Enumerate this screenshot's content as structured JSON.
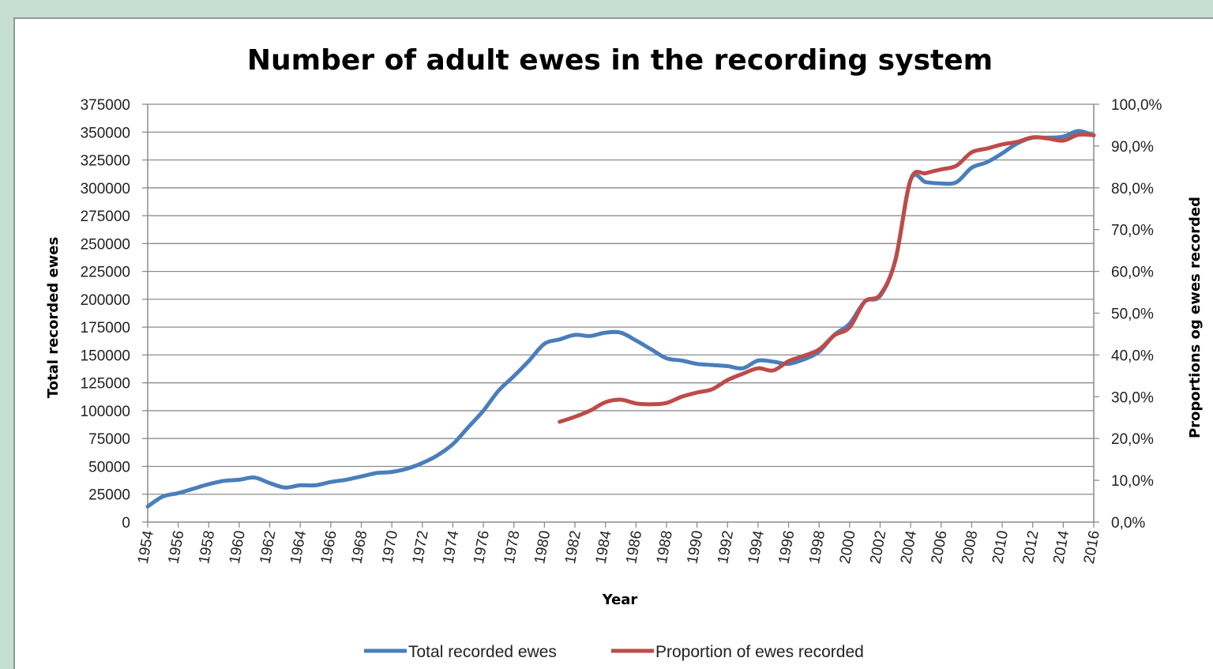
{
  "chart_data": {
    "type": "line",
    "title": "Number of adult ewes in the recording system",
    "xlabel": "Year",
    "ylabel": "Total recorded ewes",
    "y2label": "Proportions og ewes recorded",
    "xlim": [
      1954,
      2016
    ],
    "ylim": [
      0,
      375000
    ],
    "y2lim": [
      0,
      100
    ],
    "x_ticks": [
      "1954",
      "1956",
      "1958",
      "1960",
      "1962",
      "1964",
      "1966",
      "1968",
      "1970",
      "1972",
      "1974",
      "1976",
      "1978",
      "1980",
      "1982",
      "1984",
      "1986",
      "1988",
      "1990",
      "1992",
      "1994",
      "1996",
      "1998",
      "2000",
      "2002",
      "2004",
      "2006",
      "2008",
      "2010",
      "2012",
      "2014",
      "2016"
    ],
    "y_ticks": [
      "0",
      "25000",
      "50000",
      "75000",
      "100000",
      "125000",
      "150000",
      "175000",
      "200000",
      "225000",
      "250000",
      "275000",
      "300000",
      "325000",
      "350000",
      "375000"
    ],
    "y2_ticks": [
      "0,0%",
      "10,0%",
      "20,0%",
      "30,0%",
      "40,0%",
      "50,0%",
      "60,0%",
      "70,0%",
      "80,0%",
      "90,0%",
      "100,0%"
    ],
    "grid": "horizontal",
    "legend_position": "bottom",
    "series": [
      {
        "name": "Total recorded ewes",
        "color": "#4a7ebb",
        "axis": "left",
        "points": [
          [
            1954,
            14000
          ],
          [
            1955,
            23000
          ],
          [
            1956,
            26000
          ],
          [
            1957,
            30000
          ],
          [
            1958,
            34000
          ],
          [
            1959,
            37000
          ],
          [
            1960,
            38000
          ],
          [
            1961,
            40000
          ],
          [
            1962,
            35000
          ],
          [
            1963,
            31000
          ],
          [
            1964,
            33000
          ],
          [
            1965,
            33000
          ],
          [
            1966,
            36000
          ],
          [
            1967,
            38000
          ],
          [
            1968,
            41000
          ],
          [
            1969,
            44000
          ],
          [
            1970,
            45000
          ],
          [
            1971,
            48000
          ],
          [
            1972,
            53000
          ],
          [
            1973,
            60000
          ],
          [
            1974,
            70000
          ],
          [
            1975,
            85000
          ],
          [
            1976,
            100000
          ],
          [
            1977,
            118000
          ],
          [
            1978,
            131000
          ],
          [
            1979,
            145000
          ],
          [
            1980,
            160000
          ],
          [
            1981,
            164000
          ],
          [
            1982,
            168000
          ],
          [
            1983,
            167000
          ],
          [
            1984,
            170000
          ],
          [
            1985,
            170000
          ],
          [
            1986,
            163000
          ],
          [
            1987,
            155000
          ],
          [
            1988,
            147000
          ],
          [
            1989,
            145000
          ],
          [
            1990,
            142000
          ],
          [
            1991,
            141000
          ],
          [
            1992,
            140000
          ],
          [
            1993,
            138000
          ],
          [
            1994,
            145000
          ],
          [
            1995,
            144000
          ],
          [
            1996,
            142000
          ],
          [
            1997,
            146000
          ],
          [
            1998,
            153000
          ],
          [
            1999,
            168000
          ],
          [
            2000,
            178000
          ],
          [
            2001,
            198000
          ],
          [
            2002,
            203000
          ],
          [
            2003,
            235000
          ],
          [
            2004,
            307000
          ],
          [
            2005,
            305000
          ],
          [
            2006,
            304000
          ],
          [
            2007,
            305000
          ],
          [
            2008,
            318000
          ],
          [
            2009,
            323000
          ],
          [
            2010,
            331000
          ],
          [
            2011,
            340000
          ],
          [
            2012,
            345000
          ],
          [
            2013,
            345000
          ],
          [
            2014,
            346000
          ],
          [
            2015,
            351000
          ],
          [
            2016,
            347000
          ]
        ]
      },
      {
        "name": "Proportion of ewes recorded",
        "color": "#be4b48",
        "axis": "right",
        "points": [
          [
            1981,
            24.0
          ],
          [
            1982,
            25.2
          ],
          [
            1983,
            26.7
          ],
          [
            1984,
            28.7
          ],
          [
            1985,
            29.3
          ],
          [
            1986,
            28.4
          ],
          [
            1987,
            28.2
          ],
          [
            1988,
            28.5
          ],
          [
            1989,
            30.0
          ],
          [
            1990,
            31.0
          ],
          [
            1991,
            31.8
          ],
          [
            1992,
            34.0
          ],
          [
            1993,
            35.5
          ],
          [
            1994,
            36.8
          ],
          [
            1995,
            36.3
          ],
          [
            1996,
            38.5
          ],
          [
            1997,
            39.8
          ],
          [
            1998,
            41.3
          ],
          [
            1999,
            44.7
          ],
          [
            2000,
            46.6
          ],
          [
            2001,
            52.8
          ],
          [
            2002,
            54.4
          ],
          [
            2003,
            62.7
          ],
          [
            2004,
            81.9
          ],
          [
            2005,
            83.5
          ],
          [
            2006,
            84.4
          ],
          [
            2007,
            85.3
          ],
          [
            2008,
            88.5
          ],
          [
            2009,
            89.4
          ],
          [
            2010,
            90.4
          ],
          [
            2011,
            91.0
          ],
          [
            2012,
            92.1
          ],
          [
            2013,
            91.8
          ],
          [
            2014,
            91.3
          ],
          [
            2015,
            92.7
          ],
          [
            2016,
            92.6
          ]
        ]
      }
    ]
  }
}
